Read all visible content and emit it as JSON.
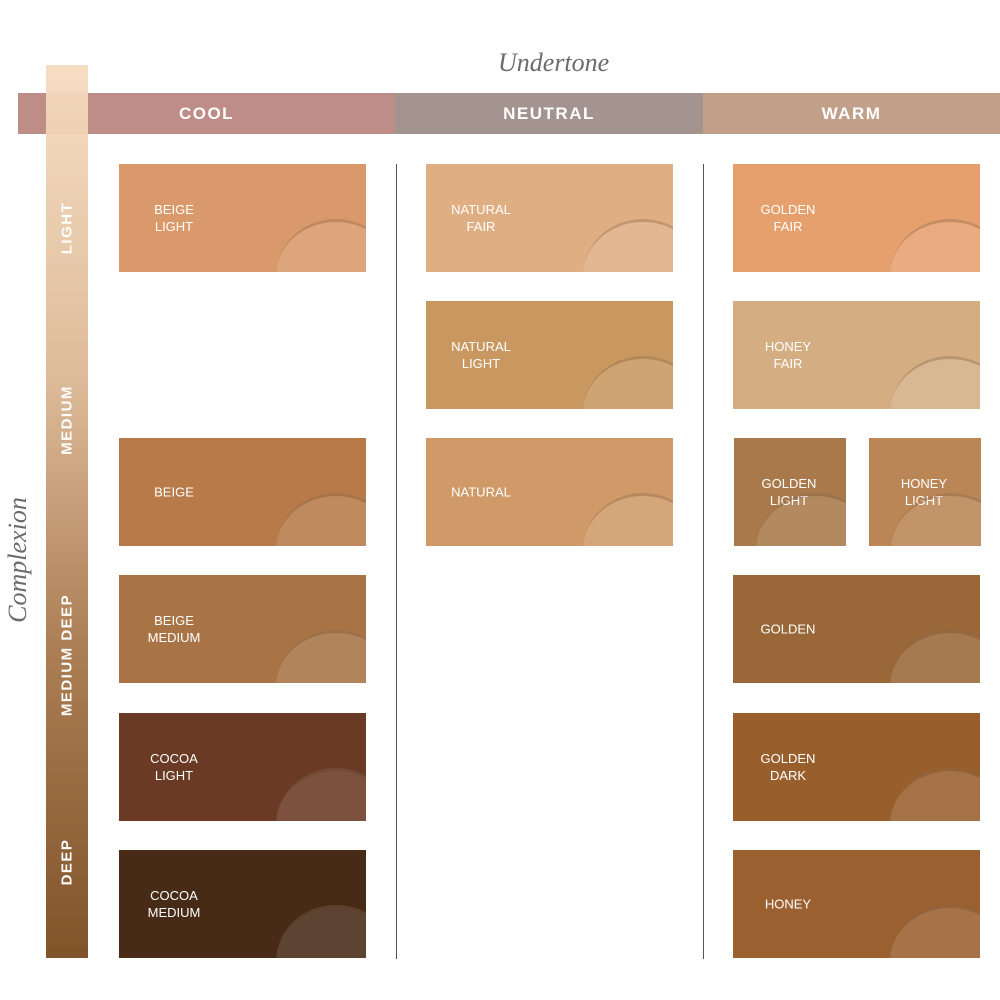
{
  "undertone_title": "Undertone",
  "complexion_title": "Complexion",
  "undertones": [
    "COOL",
    "NEUTRAL",
    "WARM"
  ],
  "complexions": [
    "LIGHT",
    "MEDIUM",
    "MEDIUM DEEP",
    "DEEP"
  ],
  "swatches": [
    {
      "lines": [
        "BEIGE",
        "LIGHT"
      ]
    },
    {
      "lines": [
        "NATURAL",
        "FAIR"
      ]
    },
    {
      "lines": [
        "GOLDEN",
        "FAIR"
      ]
    },
    {
      "lines": [
        "NATURAL",
        "LIGHT"
      ]
    },
    {
      "lines": [
        "HONEY",
        "FAIR"
      ]
    },
    {
      "lines": [
        "BEIGE"
      ]
    },
    {
      "lines": [
        "NATURAL"
      ]
    },
    {
      "lines": [
        "GOLDEN",
        "LIGHT"
      ]
    },
    {
      "lines": [
        "HONEY",
        "LIGHT"
      ]
    },
    {
      "lines": [
        "BEIGE",
        "MEDIUM"
      ]
    },
    {
      "lines": [
        "GOLDEN"
      ]
    },
    {
      "lines": [
        "COCOA",
        "LIGHT"
      ]
    },
    {
      "lines": [
        "GOLDEN",
        "DARK"
      ]
    },
    {
      "lines": [
        "COCOA",
        "MEDIUM"
      ]
    },
    {
      "lines": [
        "HONEY"
      ]
    }
  ]
}
